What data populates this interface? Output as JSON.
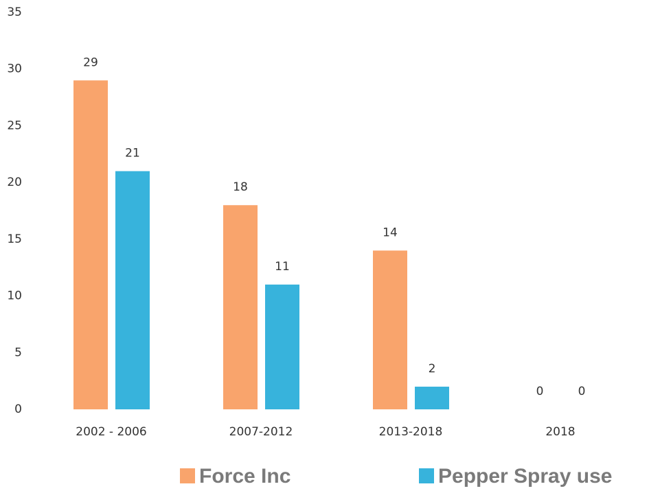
{
  "chart_data": {
    "type": "bar",
    "categories": [
      "2002 - 2006",
      "2007-2012",
      "2013-2018",
      "2018"
    ],
    "series": [
      {
        "name": "Force Inc",
        "color": "#f9a46c",
        "values": [
          29,
          18,
          14,
          0
        ]
      },
      {
        "name": "Pepper Spray use",
        "color": "#37b3dc",
        "values": [
          21,
          11,
          2,
          0
        ]
      }
    ],
    "ylim": [
      0,
      35
    ],
    "yticks": [
      0,
      5,
      10,
      15,
      20,
      25,
      30,
      35
    ],
    "grid": false,
    "legend": "bottom"
  }
}
